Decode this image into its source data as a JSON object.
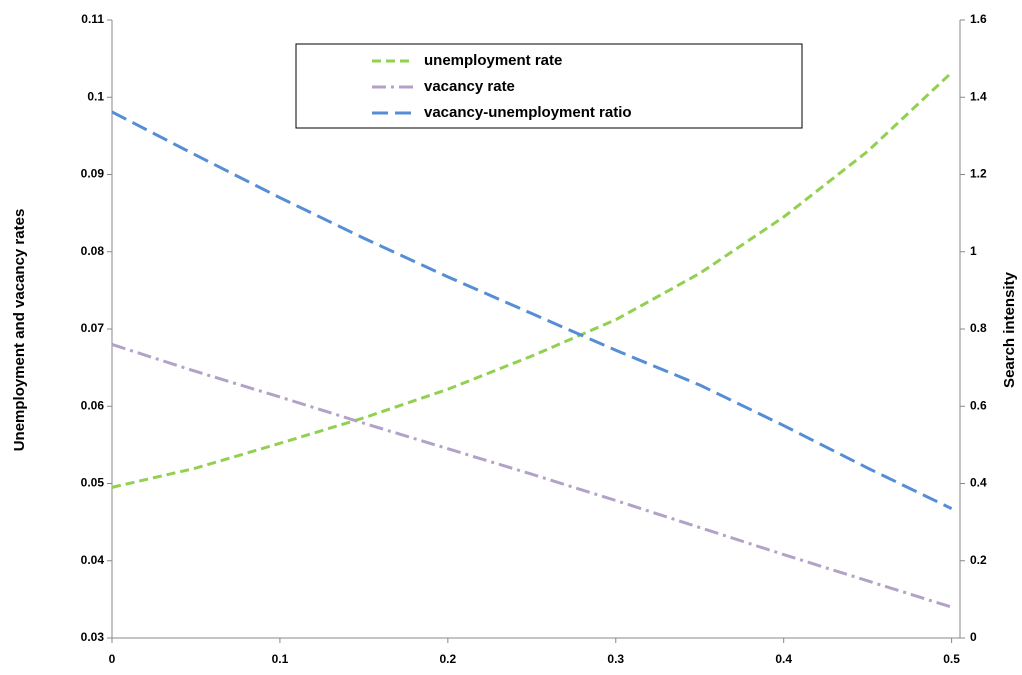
{
  "chart_data": {
    "type": "line",
    "y_label": "Unemployment and vacancy rates",
    "y2_label": "Search intensity",
    "x": [
      0,
      0.05,
      0.1,
      0.15,
      0.2,
      0.25,
      0.3,
      0.35,
      0.4,
      0.45,
      0.5
    ],
    "xlim": [
      0,
      0.505
    ],
    "xticks": [
      0,
      0.1,
      0.2,
      0.3,
      0.4,
      0.5
    ],
    "ylim": [
      0.03,
      0.11
    ],
    "yticks": [
      0.03,
      0.04,
      0.05,
      0.06,
      0.07,
      0.08,
      0.09,
      0.1,
      0.11
    ],
    "y2lim": [
      0,
      1.6
    ],
    "y2ticks": [
      0,
      0.2,
      0.4,
      0.6,
      0.8,
      1,
      1.2,
      1.4,
      1.6
    ],
    "grid": false,
    "legend": "top",
    "series": [
      {
        "name": "unemployment rate",
        "color": "#92d050",
        "dash": "9,5",
        "values": [
          0.0495,
          0.052,
          0.0552,
          0.0585,
          0.0622,
          0.0665,
          0.0712,
          0.0772,
          0.0845,
          0.093,
          0.1032
        ]
      },
      {
        "name": "vacancy rate",
        "color": "#b3a2c7",
        "dash": "14,5,3,5",
        "values": [
          0.068,
          0.0645,
          0.0612,
          0.0578,
          0.0545,
          0.0512,
          0.0478,
          0.0443,
          0.0408,
          0.0374,
          0.034
        ]
      },
      {
        "name": "vacancy-unemployment ratio",
        "color": "#558ed5",
        "dash": "16,7",
        "axis": "y2",
        "values": [
          1.362,
          1.25,
          1.14,
          1.035,
          0.935,
          0.84,
          0.745,
          0.655,
          0.55,
          0.44,
          0.335
        ]
      }
    ]
  }
}
